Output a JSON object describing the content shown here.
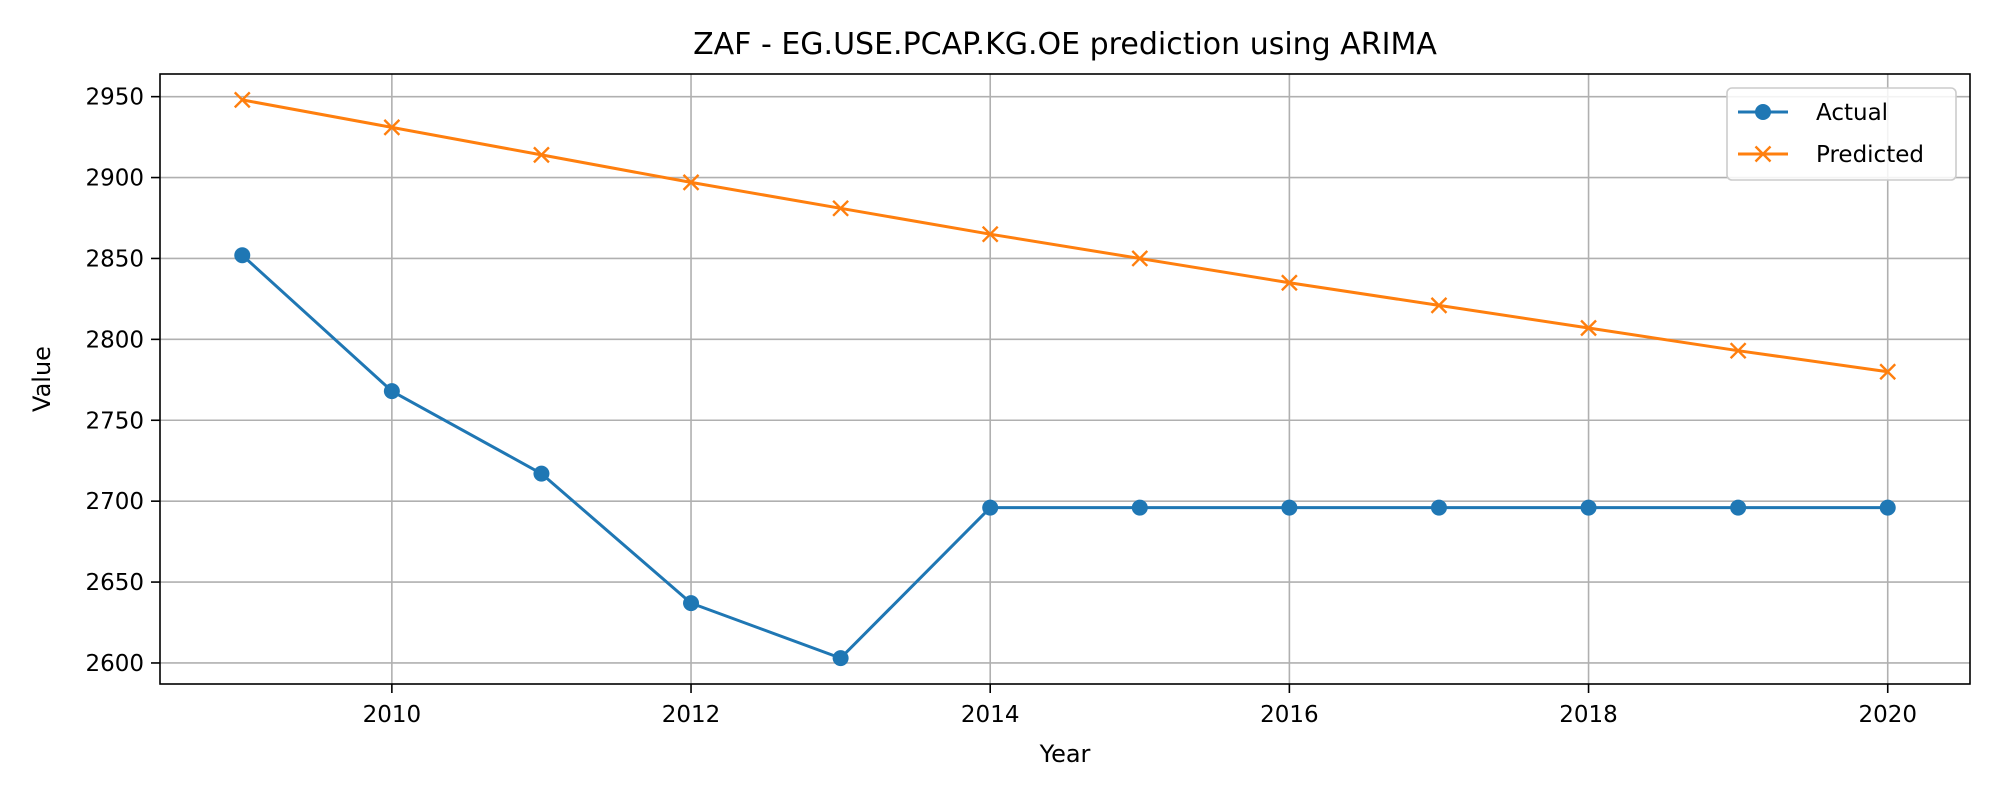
{
  "chart_data": {
    "type": "line",
    "title": "ZAF - EG.USE.PCAP.KG.OE prediction using ARIMA",
    "xlabel": "Year",
    "ylabel": "Value",
    "x": [
      2009,
      2010,
      2011,
      2012,
      2013,
      2014,
      2015,
      2016,
      2017,
      2018,
      2019,
      2020
    ],
    "xlim": [
      2008.45,
      2020.55
    ],
    "ylim": [
      2587,
      2964
    ],
    "xticks": [
      2010,
      2012,
      2014,
      2016,
      2018,
      2020
    ],
    "yticks": [
      2600,
      2650,
      2700,
      2750,
      2800,
      2850,
      2900,
      2950
    ],
    "grid": true,
    "legend_position": "top-right",
    "series": [
      {
        "name": "Actual",
        "color": "#1f77b4",
        "marker": "circle",
        "values": [
          2852,
          2768,
          2717,
          2637,
          2603,
          2696,
          2696,
          2696,
          2696,
          2696,
          2696,
          2696
        ]
      },
      {
        "name": "Predicted",
        "color": "#ff7f0e",
        "marker": "x",
        "values": [
          2948,
          2931,
          2914,
          2897,
          2881,
          2865,
          2850,
          2835,
          2821,
          2807,
          2793,
          2780
        ]
      }
    ]
  }
}
